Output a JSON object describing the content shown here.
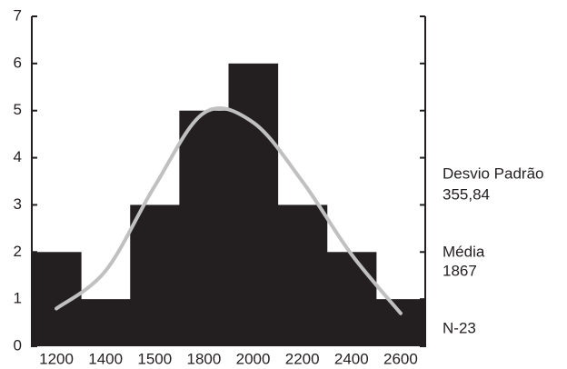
{
  "chart_data": {
    "type": "bar",
    "categories": [
      "1200",
      "1400",
      "1500",
      "1800",
      "2000",
      "2200",
      "2400",
      "2600"
    ],
    "series": [
      {
        "type": "bar",
        "color": "#231f20",
        "values": [
          2,
          1,
          3,
          5,
          6,
          3,
          2,
          1
        ]
      },
      {
        "type": "line",
        "color": "#c0c0c0",
        "values": [
          0.8,
          1.6,
          3.4,
          4.95,
          4.75,
          3.5,
          1.95,
          0.7
        ]
      }
    ],
    "ylim": [
      0,
      7
    ],
    "yticks": [
      0,
      1,
      2,
      3,
      4,
      5,
      6,
      7
    ],
    "annotations": [
      "Desvio Padrão",
      "355,84",
      "Média",
      "1867",
      "N-23"
    ]
  }
}
